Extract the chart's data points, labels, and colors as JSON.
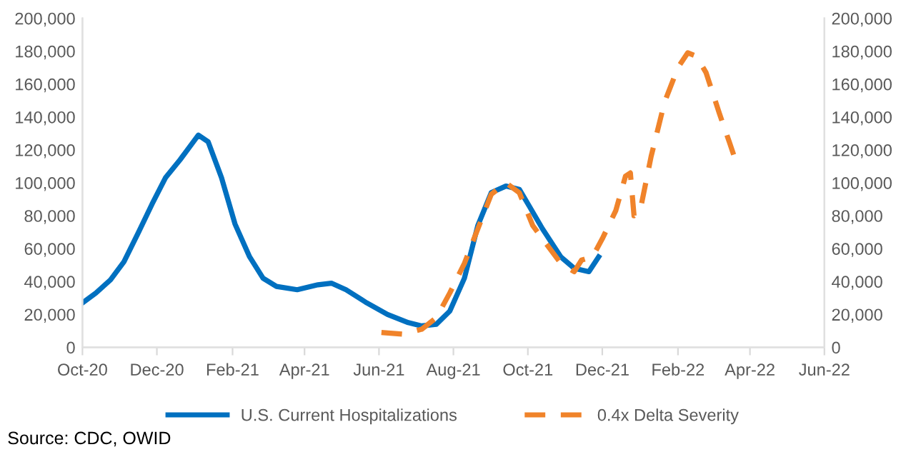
{
  "chart_data": {
    "type": "line",
    "xlim": [
      "2020-10-01",
      "2022-06-01"
    ],
    "xticks": [
      {
        "value": "2020-10-01",
        "label": "Oct-20"
      },
      {
        "value": "2020-12-01",
        "label": "Dec-20"
      },
      {
        "value": "2021-02-01",
        "label": "Feb-21"
      },
      {
        "value": "2021-04-01",
        "label": "Apr-21"
      },
      {
        "value": "2021-06-01",
        "label": "Jun-21"
      },
      {
        "value": "2021-08-01",
        "label": "Aug-21"
      },
      {
        "value": "2021-10-01",
        "label": "Oct-21"
      },
      {
        "value": "2021-12-01",
        "label": "Dec-21"
      },
      {
        "value": "2022-02-01",
        "label": "Feb-22"
      },
      {
        "value": "2022-04-01",
        "label": "Apr-22"
      },
      {
        "value": "2022-06-01",
        "label": "Jun-22"
      }
    ],
    "ylim": [
      0,
      200000
    ],
    "yticks": [
      0,
      {
        "value": 20000,
        "label": "20,000"
      },
      {
        "value": 40000,
        "label": "40,000"
      },
      {
        "value": 60000,
        "label": "60,000"
      },
      {
        "value": 80000,
        "label": "80,000"
      },
      {
        "value": 100000,
        "label": "100,000"
      },
      {
        "value": 120000,
        "label": "120,000"
      },
      {
        "value": 140000,
        "label": "140,000"
      },
      {
        "value": 160000,
        "label": "160,000"
      },
      {
        "value": 180000,
        "label": "180,000"
      },
      {
        "value": 200000,
        "label": "200,000"
      }
    ],
    "y2lim": [
      0,
      200000
    ],
    "y2ticks": [
      0,
      {
        "value": 20000,
        "label": "20,000"
      },
      {
        "value": 40000,
        "label": "40,000"
      },
      {
        "value": 60000,
        "label": "60,000"
      },
      {
        "value": 80000,
        "label": "80,000"
      },
      {
        "value": 100000,
        "label": "100,000"
      },
      {
        "value": 120000,
        "label": "120,000"
      },
      {
        "value": 140000,
        "label": "140,000"
      },
      {
        "value": 160000,
        "label": "160,000"
      },
      {
        "value": 180000,
        "label": "180,000"
      },
      {
        "value": 200000,
        "label": "200,000"
      }
    ],
    "grid": false,
    "legend": "bottom",
    "marker": "none",
    "series": [
      {
        "name": "U.S. Current Hospitalizations",
        "color": "#0070c0",
        "line_style": "solid",
        "x": [
          "2020-10-01",
          "2020-10-12",
          "2020-10-24",
          "2020-11-04",
          "2020-11-16",
          "2020-11-27",
          "2020-12-08",
          "2020-12-20",
          "2020-12-31",
          "2021-01-04",
          "2021-01-12",
          "2021-01-23",
          "2021-02-03",
          "2021-02-15",
          "2021-02-26",
          "2021-03-09",
          "2021-03-26",
          "2021-04-12",
          "2021-04-23",
          "2021-05-05",
          "2021-05-22",
          "2021-06-08",
          "2021-06-25",
          "2021-07-06",
          "2021-07-18",
          "2021-07-29",
          "2021-08-10",
          "2021-08-21",
          "2021-09-01",
          "2021-09-13",
          "2021-09-24",
          "2021-10-02",
          "2021-10-13",
          "2021-10-28",
          "2021-11-08",
          "2021-11-20",
          "2021-11-28"
        ],
        "values": [
          27000,
          33000,
          41000,
          52000,
          70000,
          87000,
          103000,
          114000,
          125000,
          129000,
          125000,
          103000,
          75000,
          55000,
          42000,
          37000,
          35000,
          38000,
          39000,
          35000,
          27000,
          20000,
          15000,
          13000,
          14000,
          22000,
          42000,
          74000,
          94000,
          98000,
          96000,
          86000,
          72000,
          55000,
          48000,
          46000,
          55000
        ]
      },
      {
        "name": "0.4x Delta Severity",
        "color": "#f0832a",
        "line_style": "dashed",
        "x": [
          "2021-06-03",
          "2021-06-20",
          "2021-07-06",
          "2021-07-18",
          "2021-07-29",
          "2021-08-10",
          "2021-08-21",
          "2021-09-01",
          "2021-09-13",
          "2021-09-24",
          "2021-10-05",
          "2021-10-17",
          "2021-10-28",
          "2021-11-08",
          "2021-11-14",
          "2021-11-23",
          "2021-12-01",
          "2021-12-12",
          "2021-12-20",
          "2021-12-24",
          "2021-12-27",
          "2022-01-01",
          "2022-01-10",
          "2022-01-21",
          "2022-02-01",
          "2022-02-09",
          "2022-02-16",
          "2022-02-24",
          "2022-03-07",
          "2022-03-15",
          "2022-03-20"
        ],
        "values": [
          9000,
          8000,
          11000,
          18000,
          33000,
          51000,
          72000,
          93000,
          100000,
          94000,
          74000,
          62000,
          51000,
          46000,
          53000,
          55000,
          66000,
          83000,
          104000,
          106000,
          80000,
          83000,
          116000,
          149000,
          170000,
          179000,
          177000,
          167000,
          142000,
          125000,
          114000
        ]
      }
    ],
    "annotations": [
      "Source: CDC, OWID"
    ]
  }
}
